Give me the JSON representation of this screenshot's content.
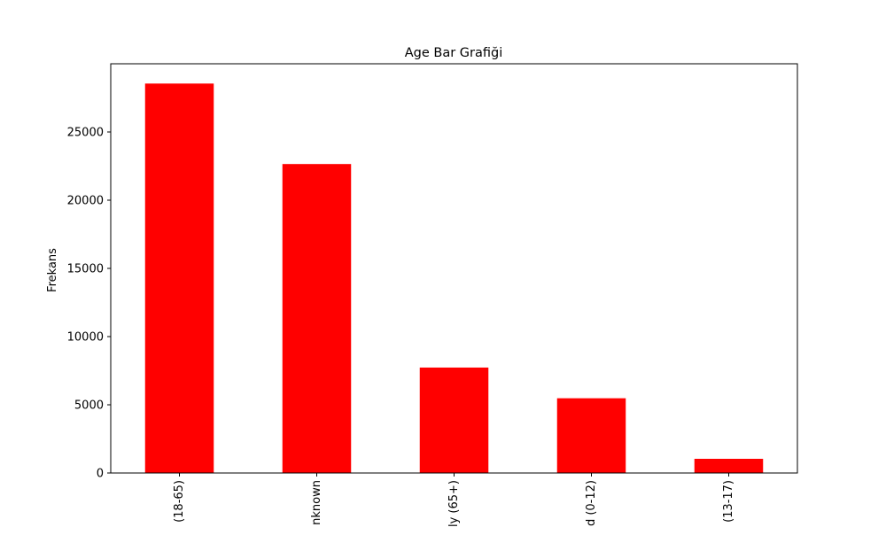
{
  "chart_data": {
    "type": "bar",
    "title": "Age Bar Grafiği",
    "xlabel": "",
    "ylabel": "Frekans",
    "categories": [
      "(18-65)",
      "nknown",
      "ly (65+)",
      "d (0-12)",
      "(13-17)"
    ],
    "values": [
      28550,
      22650,
      7730,
      5480,
      1040
    ],
    "ylim": [
      0,
      30000
    ],
    "yticks": [
      0,
      5000,
      10000,
      15000,
      20000,
      25000
    ],
    "ytick_labels": [
      "0",
      "5000",
      "10000",
      "15000",
      "20000",
      "25000"
    ],
    "bar_color": "#ff0000",
    "grid": false,
    "legend": "none"
  }
}
